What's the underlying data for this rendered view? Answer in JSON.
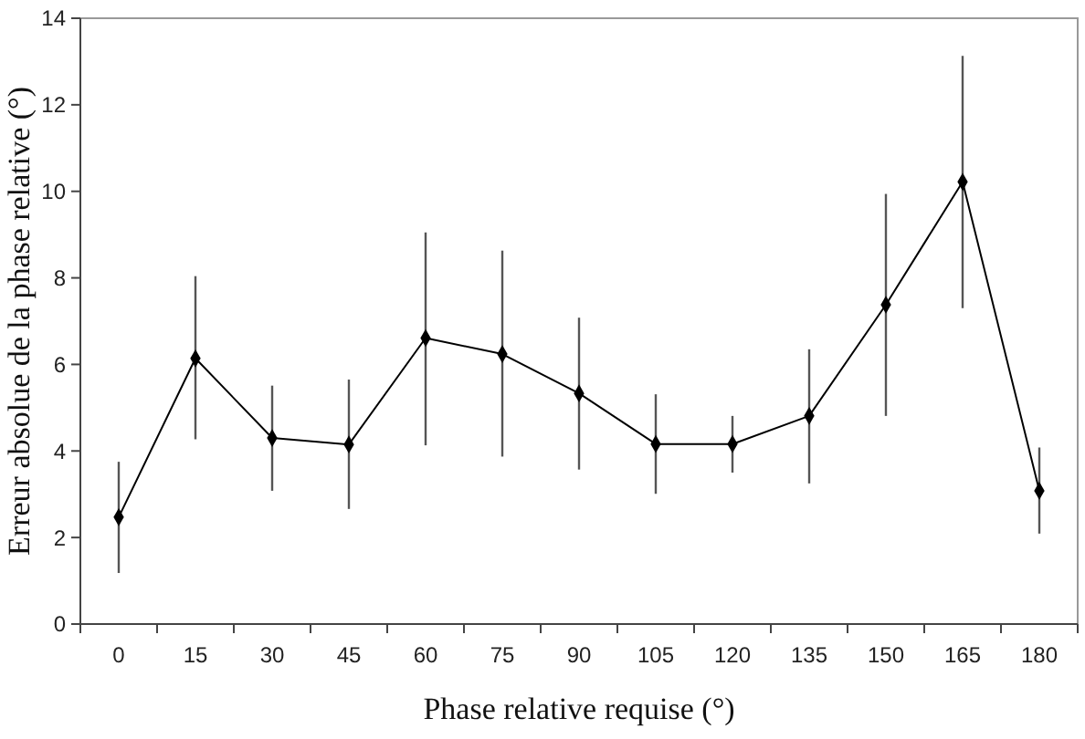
{
  "chart_data": {
    "type": "line",
    "xlabel": "Phase relative requise (°)",
    "ylabel": "Erreur absolue de la phase relative (°)",
    "categories": [
      "0",
      "15",
      "30",
      "45",
      "60",
      "75",
      "90",
      "105",
      "120",
      "135",
      "150",
      "165",
      "180"
    ],
    "series": [
      {
        "color": "#000000",
        "values": [
          2.47,
          6.14,
          4.3,
          4.15,
          6.61,
          6.24,
          5.33,
          4.16,
          4.16,
          4.81,
          7.38,
          10.22,
          3.08
        ],
        "errors": [
          [
            1.18,
            3.75
          ],
          [
            4.27,
            8.04
          ],
          [
            3.08,
            5.51
          ],
          [
            2.66,
            5.65
          ],
          [
            4.13,
            9.05
          ],
          [
            3.87,
            8.63
          ],
          [
            3.57,
            7.08
          ],
          [
            3.01,
            5.31
          ],
          [
            3.5,
            4.81
          ],
          [
            3.25,
            6.35
          ],
          [
            4.81,
            9.94
          ],
          [
            7.3,
            13.13
          ],
          [
            2.09,
            4.08
          ]
        ]
      }
    ],
    "ylim": [
      0,
      14
    ],
    "yticks": [
      0,
      2,
      4,
      6,
      8,
      10,
      12,
      14
    ],
    "marker": "diamond",
    "line_style": "solid"
  }
}
